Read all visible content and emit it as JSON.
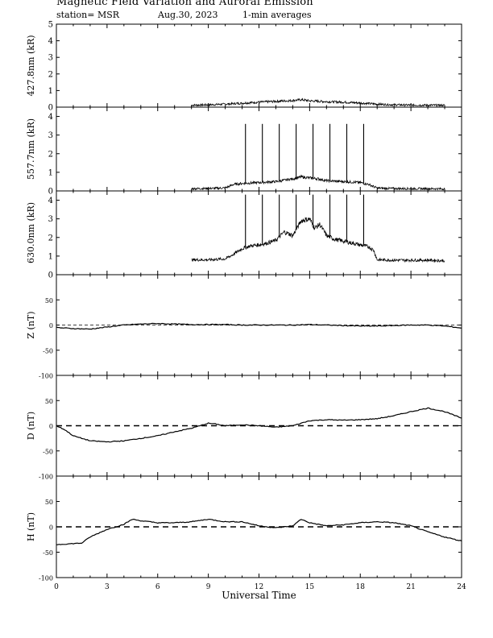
{
  "header": {
    "title": "Magnetic Field Variation and Auroral Emission",
    "station": "station= MSR",
    "date": "Aug.30, 2023",
    "averaging": "1-min averages"
  },
  "chart_data": {
    "type": "line",
    "xlabel": "Universal Time",
    "xlim": [
      0,
      24
    ],
    "xticks": [
      0,
      3,
      6,
      9,
      12,
      15,
      18,
      21,
      24
    ],
    "panels": [
      {
        "ylabel": "427.8nm (kR)",
        "ylim": [
          0,
          5
        ],
        "yticks": [
          0,
          1,
          2,
          3,
          4,
          5
        ],
        "zero_line": false,
        "points": [
          [
            8,
            0.12
          ],
          [
            9,
            0.14
          ],
          [
            10,
            0.18
          ],
          [
            11,
            0.24
          ],
          [
            12,
            0.3
          ],
          [
            13,
            0.35
          ],
          [
            14,
            0.4
          ],
          [
            14.5,
            0.45
          ],
          [
            15,
            0.38
          ],
          [
            16,
            0.33
          ],
          [
            17,
            0.3
          ],
          [
            18,
            0.25
          ],
          [
            19,
            0.18
          ],
          [
            20,
            0.14
          ],
          [
            21,
            0.12
          ],
          [
            22,
            0.12
          ],
          [
            23,
            0.11
          ]
        ],
        "spikes": []
      },
      {
        "ylabel": "557.7nm (kR)",
        "ylim": [
          0,
          4.5
        ],
        "yticks": [
          0,
          1,
          2,
          3,
          4
        ],
        "zero_line": false,
        "points": [
          [
            8,
            0.12
          ],
          [
            9,
            0.13
          ],
          [
            10,
            0.16
          ],
          [
            10.5,
            0.35
          ],
          [
            11,
            0.4
          ],
          [
            12,
            0.45
          ],
          [
            13,
            0.5
          ],
          [
            14,
            0.65
          ],
          [
            14.5,
            0.75
          ],
          [
            15,
            0.7
          ],
          [
            15.5,
            0.65
          ],
          [
            16,
            0.55
          ],
          [
            17,
            0.5
          ],
          [
            18,
            0.45
          ],
          [
            18.5,
            0.35
          ],
          [
            19,
            0.15
          ],
          [
            20,
            0.13
          ],
          [
            21,
            0.12
          ],
          [
            22,
            0.12
          ],
          [
            23,
            0.11
          ]
        ],
        "spikes": [
          [
            11.2,
            3.6
          ],
          [
            12.2,
            3.6
          ],
          [
            13.2,
            3.6
          ],
          [
            14.2,
            3.6
          ],
          [
            15.2,
            3.6
          ],
          [
            16.2,
            3.6
          ],
          [
            17.2,
            3.6
          ],
          [
            18.2,
            3.6
          ]
        ]
      },
      {
        "ylabel": "630.0nm (kR)",
        "ylim": [
          0,
          4.5
        ],
        "yticks": [
          0,
          1,
          2,
          3,
          4
        ],
        "zero_line": false,
        "points": [
          [
            8,
            0.8
          ],
          [
            9,
            0.8
          ],
          [
            10,
            0.85
          ],
          [
            10.5,
            1.1
          ],
          [
            11,
            1.4
          ],
          [
            11.5,
            1.55
          ],
          [
            12,
            1.6
          ],
          [
            12.5,
            1.7
          ],
          [
            13,
            1.85
          ],
          [
            13.5,
            2.3
          ],
          [
            14,
            2.1
          ],
          [
            14.5,
            2.9
          ],
          [
            15,
            3.0
          ],
          [
            15.3,
            2.5
          ],
          [
            15.6,
            2.7
          ],
          [
            16,
            2.1
          ],
          [
            16.5,
            1.9
          ],
          [
            17,
            1.8
          ],
          [
            17.5,
            1.7
          ],
          [
            18,
            1.6
          ],
          [
            18.5,
            1.5
          ],
          [
            18.8,
            1.3
          ],
          [
            19,
            0.8
          ],
          [
            20,
            0.78
          ],
          [
            21,
            0.78
          ],
          [
            22,
            0.78
          ],
          [
            23,
            0.75
          ]
        ],
        "spikes": [
          [
            11.2,
            4.3
          ],
          [
            12.2,
            4.3
          ],
          [
            13.2,
            4.3
          ],
          [
            14.2,
            4.3
          ],
          [
            15.2,
            4.3
          ],
          [
            16.2,
            4.3
          ],
          [
            17.2,
            4.3
          ],
          [
            18.2,
            4.3
          ]
        ]
      },
      {
        "ylabel": "Z (nT)",
        "ylim": [
          -100,
          100
        ],
        "yticks": [
          -100,
          -50,
          0,
          50
        ],
        "zero_line": true,
        "points": [
          [
            0,
            -5
          ],
          [
            1,
            -7
          ],
          [
            2,
            -8
          ],
          [
            3,
            -4
          ],
          [
            4,
            0
          ],
          [
            5,
            2
          ],
          [
            6,
            3
          ],
          [
            7,
            2
          ],
          [
            8,
            1
          ],
          [
            9,
            1
          ],
          [
            10,
            1
          ],
          [
            11,
            0
          ],
          [
            12,
            0
          ],
          [
            13,
            0
          ],
          [
            14,
            0
          ],
          [
            15,
            1
          ],
          [
            16,
            0
          ],
          [
            17,
            -1
          ],
          [
            18,
            -2
          ],
          [
            19,
            -2
          ],
          [
            20,
            -1
          ],
          [
            21,
            0
          ],
          [
            22,
            0
          ],
          [
            23,
            -2
          ],
          [
            24,
            -6
          ]
        ],
        "spikes": []
      },
      {
        "ylabel": "D (nT)",
        "ylim": [
          -100,
          100
        ],
        "yticks": [
          -100,
          -50,
          0,
          50
        ],
        "zero_line": true,
        "points": [
          [
            0,
            0
          ],
          [
            0.5,
            -8
          ],
          [
            1,
            -20
          ],
          [
            2,
            -30
          ],
          [
            3,
            -32
          ],
          [
            4,
            -30
          ],
          [
            5,
            -25
          ],
          [
            6,
            -20
          ],
          [
            7,
            -12
          ],
          [
            8,
            -5
          ],
          [
            9,
            5
          ],
          [
            9.5,
            3
          ],
          [
            10,
            0
          ],
          [
            11,
            2
          ],
          [
            12,
            0
          ],
          [
            13,
            -3
          ],
          [
            14,
            0
          ],
          [
            14.5,
            5
          ],
          [
            15,
            10
          ],
          [
            16,
            12
          ],
          [
            17,
            11
          ],
          [
            18,
            12
          ],
          [
            19,
            14
          ],
          [
            20,
            20
          ],
          [
            21,
            28
          ],
          [
            22,
            35
          ],
          [
            23,
            28
          ],
          [
            24,
            15
          ]
        ],
        "spikes": []
      },
      {
        "ylabel": "H (nT)",
        "ylim": [
          -100,
          100
        ],
        "yticks": [
          -100,
          -50,
          0,
          50
        ],
        "zero_line": true,
        "points": [
          [
            0,
            -35
          ],
          [
            1,
            -33
          ],
          [
            1.5,
            -32
          ],
          [
            2,
            -20
          ],
          [
            3,
            -5
          ],
          [
            4,
            5
          ],
          [
            4.5,
            15
          ],
          [
            5,
            12
          ],
          [
            6,
            8
          ],
          [
            7,
            8
          ],
          [
            8,
            10
          ],
          [
            9,
            15
          ],
          [
            10,
            10
          ],
          [
            11,
            10
          ],
          [
            12,
            2
          ],
          [
            13,
            -2
          ],
          [
            14,
            2
          ],
          [
            14.5,
            15
          ],
          [
            15,
            8
          ],
          [
            16,
            2
          ],
          [
            17,
            4
          ],
          [
            18,
            8
          ],
          [
            19,
            10
          ],
          [
            20,
            8
          ],
          [
            21,
            2
          ],
          [
            22,
            -10
          ],
          [
            23,
            -20
          ],
          [
            24,
            -28
          ]
        ],
        "spikes": []
      }
    ]
  }
}
